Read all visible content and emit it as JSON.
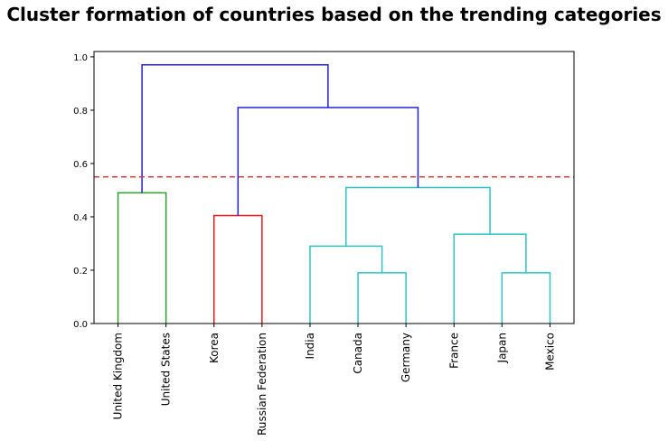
{
  "chart_data": {
    "type": "dendrogram",
    "title": "Cluster formation of countries based on the trending categories",
    "xlabel": "",
    "ylabel": "",
    "ylim": [
      0,
      1.02
    ],
    "yticks": [
      0.0,
      0.2,
      0.4,
      0.6,
      0.8,
      1.0
    ],
    "ytick_labels": [
      "0.0",
      "0.2",
      "0.4",
      "0.6",
      "0.8",
      "1.0"
    ],
    "leaves": [
      "United Kingdom",
      "United States",
      "Korea",
      "Russian Federation",
      "India",
      "Canada",
      "Germany",
      "France",
      "Japan",
      "Mexico"
    ],
    "threshold": {
      "value": 0.55,
      "color": "#e03b3b",
      "style": "dashed"
    },
    "merges": [
      {
        "left": "leaf:0",
        "right": "leaf:1",
        "height": 0.49,
        "color": "#2ca02c"
      },
      {
        "left": "leaf:2",
        "right": "leaf:3",
        "height": 0.405,
        "color": "#e41a1c"
      },
      {
        "left": "leaf:5",
        "right": "leaf:6",
        "height": 0.19,
        "color": "#2cc4c4"
      },
      {
        "left": "leaf:4",
        "right": "node:2",
        "height": 0.29,
        "color": "#2cc4c4"
      },
      {
        "left": "leaf:8",
        "right": "leaf:9",
        "height": 0.19,
        "color": "#2cc4c4"
      },
      {
        "left": "leaf:7",
        "right": "node:4",
        "height": 0.335,
        "color": "#2cc4c4"
      },
      {
        "left": "node:3",
        "right": "node:5",
        "height": 0.51,
        "color": "#2cc4c4"
      },
      {
        "left": "node:1",
        "right": "node:6",
        "height": 0.81,
        "color": "#1f1fe0"
      },
      {
        "left": "node:0",
        "right": "node:7",
        "height": 0.97,
        "color": "#1f1fe0"
      }
    ],
    "grid": false,
    "legend": "none"
  }
}
